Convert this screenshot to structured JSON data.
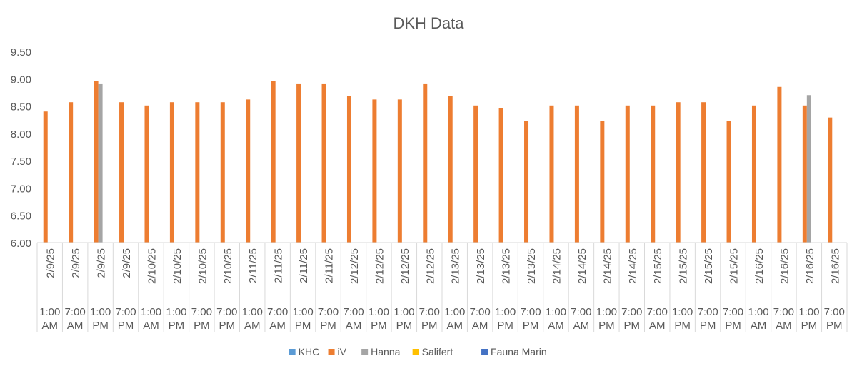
{
  "chart_data": {
    "type": "bar",
    "title": "DKH Data",
    "xlabel": "",
    "ylabel": "",
    "ylim": [
      6.0,
      9.5
    ],
    "yticks": [
      "6.00",
      "6.50",
      "7.00",
      "7.50",
      "8.00",
      "8.50",
      "9.00",
      "9.50"
    ],
    "grid": false,
    "legend_position": "bottom",
    "categories": [
      {
        "date": "2/9/25",
        "time": [
          "1:00",
          "AM"
        ]
      },
      {
        "date": "2/9/25",
        "time": [
          "7:00",
          "AM"
        ]
      },
      {
        "date": "2/9/25",
        "time": [
          "1:00",
          "PM"
        ]
      },
      {
        "date": "2/9/25",
        "time": [
          "7:00",
          "PM"
        ]
      },
      {
        "date": "2/10/25",
        "time": [
          "1:00",
          "AM"
        ]
      },
      {
        "date": "2/10/25",
        "time": [
          "1:00",
          "PM"
        ]
      },
      {
        "date": "2/10/25",
        "time": [
          "7:00",
          "PM"
        ]
      },
      {
        "date": "2/10/25",
        "time": [
          "7:00",
          "PM"
        ]
      },
      {
        "date": "2/11/25",
        "time": [
          "1:00",
          "AM"
        ]
      },
      {
        "date": "2/11/25",
        "time": [
          "7:00",
          "AM"
        ]
      },
      {
        "date": "2/11/25",
        "time": [
          "1:00",
          "PM"
        ]
      },
      {
        "date": "2/11/25",
        "time": [
          "7:00",
          "PM"
        ]
      },
      {
        "date": "2/12/25",
        "time": [
          "7:00",
          "AM"
        ]
      },
      {
        "date": "2/12/25",
        "time": [
          "1:00",
          "PM"
        ]
      },
      {
        "date": "2/12/25",
        "time": [
          "1:00",
          "PM"
        ]
      },
      {
        "date": "2/12/25",
        "time": [
          "7:00",
          "PM"
        ]
      },
      {
        "date": "2/13/25",
        "time": [
          "1:00",
          "AM"
        ]
      },
      {
        "date": "2/13/25",
        "time": [
          "7:00",
          "AM"
        ]
      },
      {
        "date": "2/13/25",
        "time": [
          "1:00",
          "PM"
        ]
      },
      {
        "date": "2/13/25",
        "time": [
          "7:00",
          "PM"
        ]
      },
      {
        "date": "2/14/25",
        "time": [
          "1:00",
          "AM"
        ]
      },
      {
        "date": "2/14/25",
        "time": [
          "7:00",
          "AM"
        ]
      },
      {
        "date": "2/14/25",
        "time": [
          "1:00",
          "PM"
        ]
      },
      {
        "date": "2/14/25",
        "time": [
          "7:00",
          "PM"
        ]
      },
      {
        "date": "2/15/25",
        "time": [
          "7:00",
          "AM"
        ]
      },
      {
        "date": "2/15/25",
        "time": [
          "1:00",
          "PM"
        ]
      },
      {
        "date": "2/15/25",
        "time": [
          "7:00",
          "PM"
        ]
      },
      {
        "date": "2/15/25",
        "time": [
          "7:00",
          "PM"
        ]
      },
      {
        "date": "2/16/25",
        "time": [
          "1:00",
          "AM"
        ]
      },
      {
        "date": "2/16/25",
        "time": [
          "7:00",
          "AM"
        ]
      },
      {
        "date": "2/16/25",
        "time": [
          "1:00",
          "PM"
        ]
      },
      {
        "date": "2/16/25",
        "time": [
          "7:00",
          "PM"
        ]
      }
    ],
    "series": [
      {
        "name": "KHC",
        "color": "#5b9bd5",
        "values": [
          null,
          null,
          null,
          null,
          null,
          null,
          null,
          null,
          null,
          null,
          null,
          null,
          null,
          null,
          null,
          null,
          null,
          null,
          null,
          null,
          null,
          null,
          null,
          null,
          null,
          null,
          null,
          null,
          null,
          null,
          null,
          null
        ]
      },
      {
        "name": "iV",
        "color": "#ed7d31",
        "values": [
          8.4,
          8.57,
          8.96,
          8.57,
          8.51,
          8.57,
          8.57,
          8.57,
          8.62,
          8.96,
          8.9,
          8.9,
          8.68,
          8.62,
          8.62,
          8.9,
          8.68,
          8.51,
          8.46,
          8.23,
          8.51,
          8.51,
          8.23,
          8.51,
          8.51,
          8.57,
          8.57,
          8.23,
          8.51,
          8.85,
          8.51,
          8.29
        ]
      },
      {
        "name": "Hanna",
        "color": "#a5a5a5",
        "values": [
          null,
          null,
          8.9,
          null,
          null,
          null,
          null,
          null,
          null,
          null,
          null,
          null,
          null,
          null,
          null,
          null,
          null,
          null,
          null,
          null,
          null,
          null,
          null,
          null,
          null,
          null,
          null,
          null,
          null,
          null,
          8.7,
          null
        ]
      },
      {
        "name": "Salifert",
        "color": "#ffc000",
        "values": [
          null,
          null,
          null,
          null,
          null,
          null,
          null,
          null,
          null,
          null,
          null,
          null,
          null,
          null,
          null,
          null,
          null,
          null,
          null,
          null,
          null,
          null,
          null,
          null,
          null,
          null,
          null,
          null,
          null,
          null,
          null,
          null
        ]
      },
      {
        "name": "Fauna Marin",
        "color": "#4472c4",
        "values": [
          null,
          null,
          null,
          null,
          null,
          null,
          null,
          null,
          null,
          null,
          null,
          null,
          null,
          null,
          null,
          null,
          null,
          null,
          null,
          null,
          null,
          null,
          null,
          null,
          null,
          null,
          null,
          null,
          null,
          null,
          null,
          null
        ]
      }
    ]
  }
}
